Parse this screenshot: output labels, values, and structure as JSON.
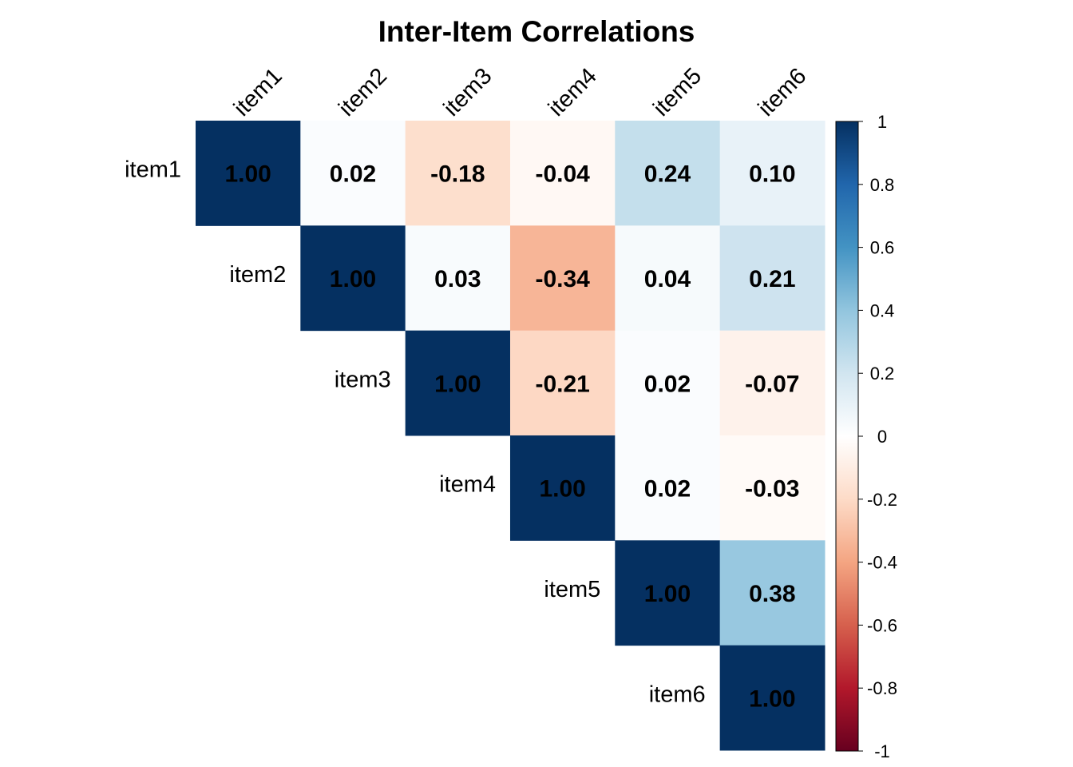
{
  "chart_data": {
    "type": "heatmap",
    "title": "Inter-Item Correlations",
    "variables": [
      "item1",
      "item2",
      "item3",
      "item4",
      "item5",
      "item6"
    ],
    "layout": "upper-triangle",
    "matrix": [
      [
        1.0,
        0.02,
        -0.18,
        -0.04,
        0.24,
        0.1
      ],
      [
        0.02,
        1.0,
        0.03,
        -0.34,
        0.04,
        0.21
      ],
      [
        -0.18,
        0.03,
        1.0,
        -0.21,
        0.02,
        -0.07
      ],
      [
        -0.04,
        -0.34,
        -0.21,
        1.0,
        0.02,
        -0.03
      ],
      [
        0.24,
        0.04,
        0.02,
        0.02,
        1.0,
        0.38
      ],
      [
        0.1,
        0.21,
        -0.07,
        -0.03,
        0.38,
        1.0
      ]
    ],
    "value_format": "2 decimals",
    "color_scale": {
      "range": [
        -1,
        1
      ],
      "ticks": [
        "1",
        "0.8",
        "0.6",
        "0.4",
        "0.2",
        "0",
        "-0.2",
        "-0.4",
        "-0.6",
        "-0.8",
        "-1"
      ],
      "colors": [
        "#67001F",
        "#B2182B",
        "#D6604D",
        "#F4A582",
        "#FDDBC7",
        "#FFFFFF",
        "#D1E5F0",
        "#92C5DE",
        "#4393C3",
        "#2166AC",
        "#053061"
      ]
    }
  }
}
